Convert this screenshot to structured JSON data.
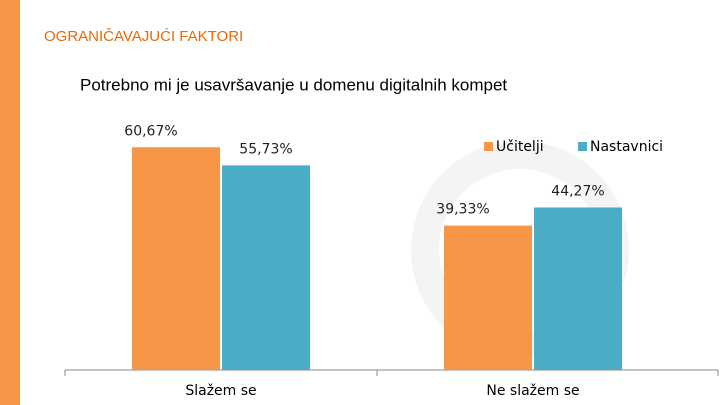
{
  "header": {
    "title": "OGRANIČAVAJUĆI FAKTORI"
  },
  "chart_data": {
    "type": "bar",
    "title": "Potrebno mi je usavršavanje u domenu digitalnih kompet",
    "categories": [
      "Slažem se",
      "Ne slažem se"
    ],
    "series": [
      {
        "name": "Učitelji",
        "color": "#f79646",
        "values": [
          60.67,
          39.33
        ],
        "value_labels": [
          "60,67%",
          "39,33%"
        ]
      },
      {
        "name": "Nastavnici",
        "color": "#4bacc6",
        "values": [
          55.73,
          44.27
        ],
        "value_labels": [
          "55,73%",
          "44,27%"
        ]
      }
    ],
    "ylim": [
      0,
      70
    ],
    "legend": "top-right"
  }
}
